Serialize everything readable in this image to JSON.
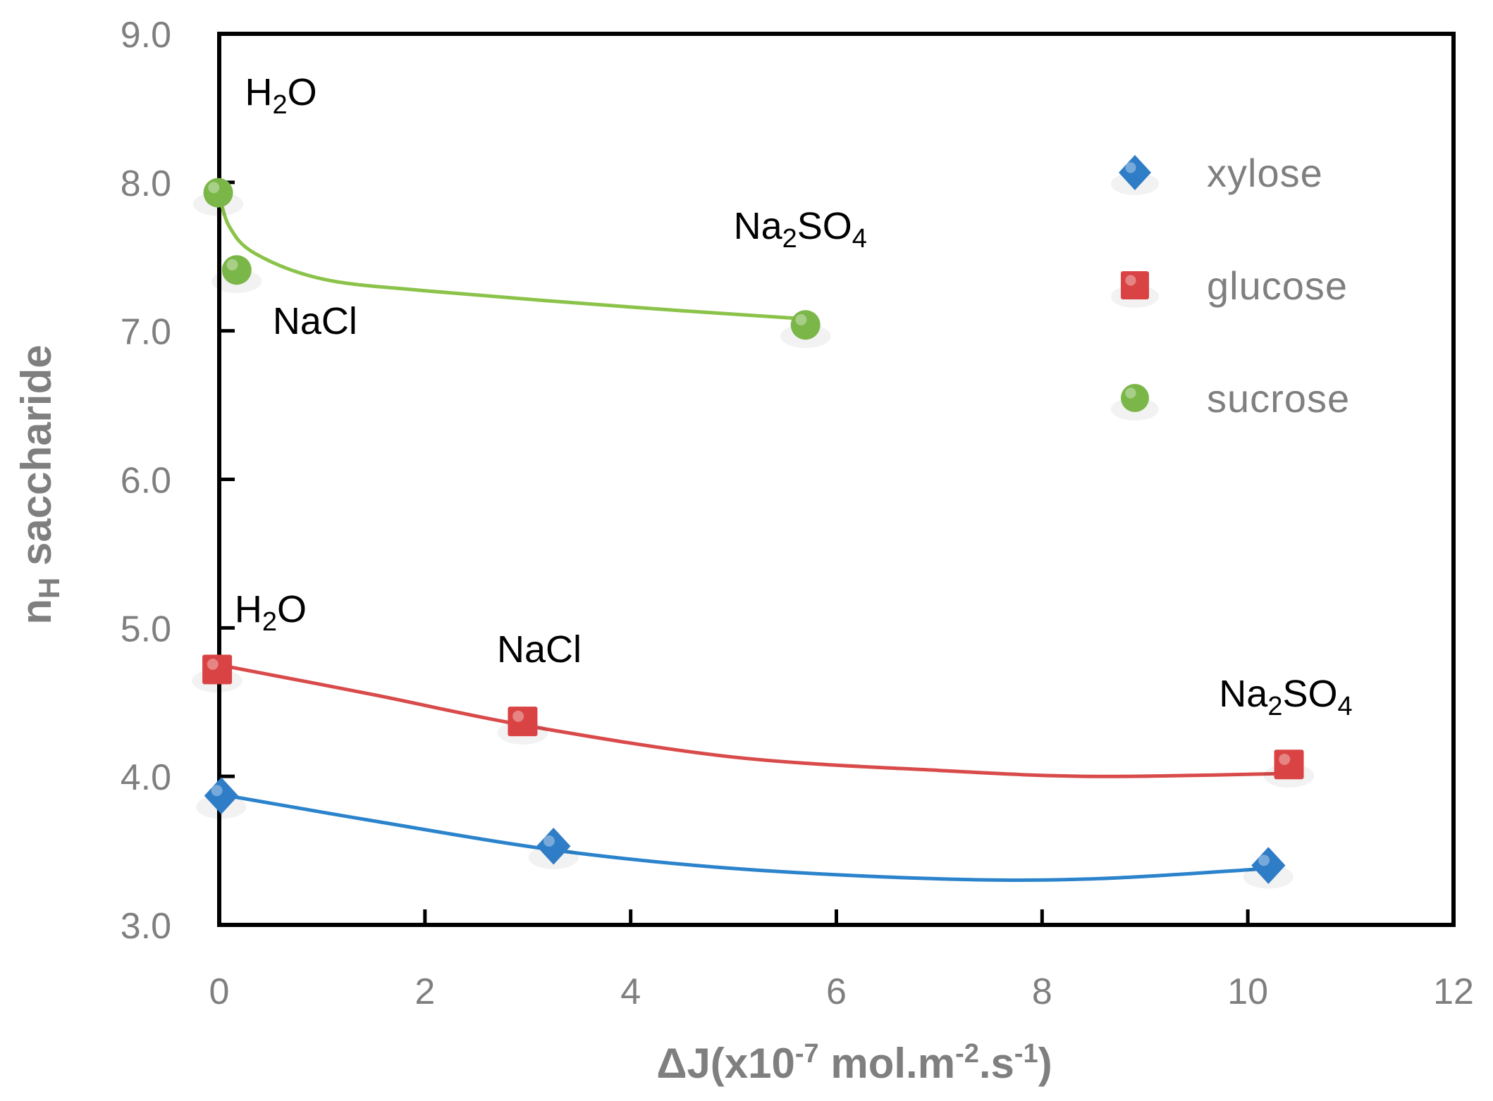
{
  "chart_data": {
    "type": "scatter",
    "title": "",
    "xlabel": {
      "main": "ΔJ(x10",
      "exp1": "-7",
      "mid": " mol.m",
      "exp2": "-2",
      "mid2": ".s",
      "exp3": "-1",
      "end": ")"
    },
    "ylabel": {
      "main": "n",
      "sub": "H",
      "rest": " saccharide"
    },
    "xlim": [
      0,
      12
    ],
    "ylim": [
      3.0,
      9.0
    ],
    "x_ticks": [
      0,
      2,
      4,
      6,
      8,
      10,
      12
    ],
    "y_ticks": [
      3.0,
      4.0,
      5.0,
      6.0,
      7.0,
      8.0,
      9.0
    ],
    "x_tick_labels": [
      "0",
      "2",
      "4",
      "6",
      "8",
      "10",
      "12"
    ],
    "y_tick_labels": [
      "3.0",
      "4.0",
      "5.0",
      "6.0",
      "7.0",
      "8.0",
      "9.0"
    ],
    "legend_position": "top-right",
    "series": [
      {
        "name": "xylose",
        "marker": "diamond",
        "color": "#2e7dc6",
        "line_color": "#2b83cc",
        "points": [
          {
            "x": 0.02,
            "y": 3.87
          },
          {
            "x": 3.25,
            "y": 3.53
          },
          {
            "x": 10.2,
            "y": 3.4
          }
        ],
        "fit": [
          {
            "x": 0.0,
            "y": 3.88
          },
          {
            "x": 1.5,
            "y": 3.7
          },
          {
            "x": 3.3,
            "y": 3.5
          },
          {
            "x": 5.0,
            "y": 3.38
          },
          {
            "x": 7.0,
            "y": 3.31
          },
          {
            "x": 8.5,
            "y": 3.31
          },
          {
            "x": 10.2,
            "y": 3.38
          }
        ]
      },
      {
        "name": "glucose",
        "marker": "square",
        "color": "#d94343",
        "line_color": "#d94a4a",
        "points": [
          {
            "x": -0.02,
            "y": 4.72
          },
          {
            "x": 2.95,
            "y": 4.37
          },
          {
            "x": 10.4,
            "y": 4.08
          }
        ],
        "fit": [
          {
            "x": 0.0,
            "y": 4.75
          },
          {
            "x": 1.5,
            "y": 4.55
          },
          {
            "x": 3.0,
            "y": 4.34
          },
          {
            "x": 5.0,
            "y": 4.13
          },
          {
            "x": 7.0,
            "y": 4.04
          },
          {
            "x": 8.5,
            "y": 4.0
          },
          {
            "x": 10.4,
            "y": 4.02
          }
        ]
      },
      {
        "name": "sucrose",
        "marker": "circle",
        "color": "#7ab648",
        "line_color": "#8bc34a",
        "points": [
          {
            "x": -0.01,
            "y": 7.93
          },
          {
            "x": 0.17,
            "y": 7.41
          },
          {
            "x": 5.7,
            "y": 7.04
          }
        ],
        "fit": [
          {
            "x": 0.0,
            "y": 7.92
          },
          {
            "x": 0.1,
            "y": 7.7
          },
          {
            "x": 0.35,
            "y": 7.52
          },
          {
            "x": 1.0,
            "y": 7.35
          },
          {
            "x": 2.0,
            "y": 7.27
          },
          {
            "x": 4.0,
            "y": 7.16
          },
          {
            "x": 5.7,
            "y": 7.08
          }
        ]
      }
    ],
    "annotations": [
      {
        "text": "H",
        "sub": "2",
        "rest": "O",
        "x": 0.25,
        "y": 8.52
      },
      {
        "text": "NaCl",
        "sub": "",
        "rest": "",
        "x": 0.52,
        "y": 6.98
      },
      {
        "text": "Na",
        "sub": "2",
        "rest": "SO",
        "sub2": "4",
        "x": 5.0,
        "y": 7.62
      },
      {
        "text": "H",
        "sub": "2",
        "rest": "O",
        "x": 0.15,
        "y": 5.04
      },
      {
        "text": "NaCl",
        "sub": "",
        "rest": "",
        "x": 2.7,
        "y": 4.77
      },
      {
        "text": "Na",
        "sub": "2",
        "rest": "SO",
        "sub2": "4",
        "x": 9.72,
        "y": 4.47
      }
    ]
  }
}
